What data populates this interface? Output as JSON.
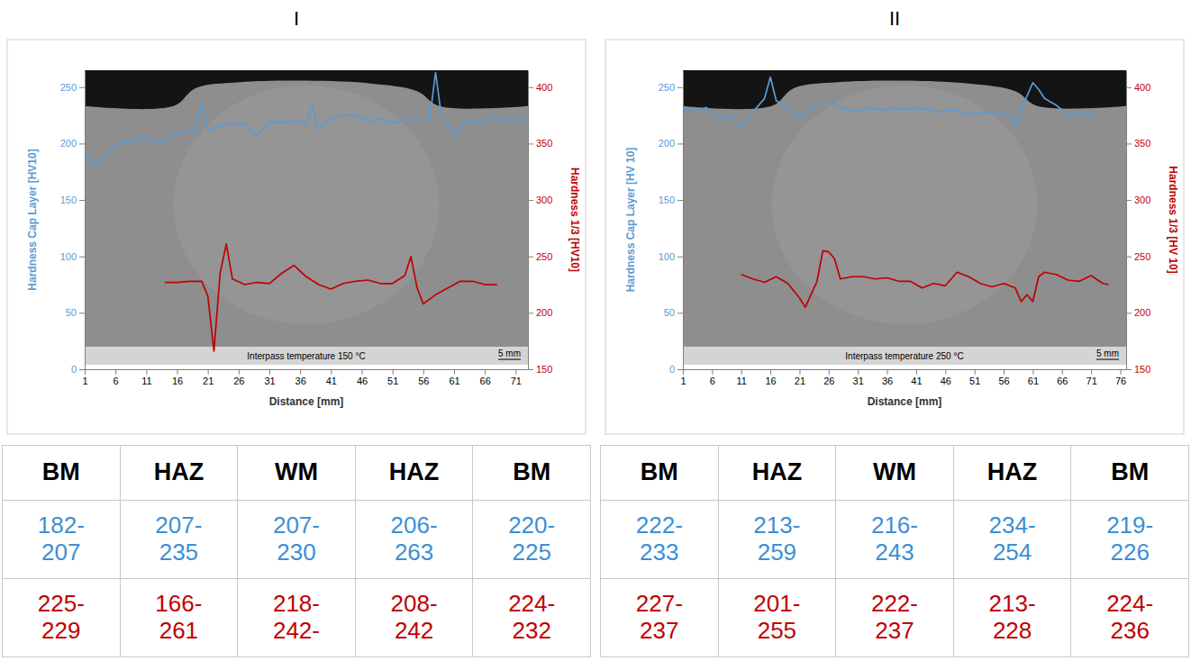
{
  "chart_data": [
    {
      "type": "line",
      "title": "I",
      "x_label": "Distance [mm]",
      "y_label": "Hardness Cap Layer [HV10]",
      "y2_label": "Hardness 1/3 [HV10]",
      "annotations": [
        "Interpass temperature 150 °C",
        "5 mm"
      ],
      "xlim": [
        1,
        73
      ],
      "xticks": [
        1,
        6,
        11,
        16,
        21,
        26,
        31,
        36,
        41,
        46,
        51,
        56,
        61,
        66,
        71
      ],
      "ylim": [
        0,
        265
      ],
      "yticks": [
        0,
        50,
        100,
        150,
        200,
        250
      ],
      "y2lim": [
        150,
        415
      ],
      "y2ticks": [
        150,
        200,
        250,
        300,
        350,
        400
      ],
      "grid": false,
      "series": [
        {
          "color": "#5b9bd5",
          "axis": "y",
          "x": [
            1,
            3,
            5,
            7,
            9,
            11,
            13,
            15,
            17,
            19,
            20,
            21,
            23,
            25,
            27,
            29,
            31,
            33,
            35,
            37,
            38,
            39,
            41,
            43,
            45,
            47,
            49,
            51,
            53,
            55,
            57,
            58,
            59,
            60,
            61,
            63,
            65,
            67,
            69,
            71,
            73
          ],
          "values": [
            190,
            182,
            195,
            200,
            203,
            205,
            200,
            207,
            210,
            212,
            235,
            212,
            215,
            218,
            217,
            207,
            220,
            218,
            220,
            218,
            232,
            212,
            222,
            225,
            225,
            220,
            222,
            218,
            220,
            222,
            220,
            263,
            222,
            218,
            208,
            220,
            218,
            222,
            222,
            220,
            222
          ]
        },
        {
          "color": "#c00000",
          "axis": "y2",
          "x": [
            14,
            16,
            18,
            20,
            21,
            22,
            23,
            24,
            25,
            27,
            29,
            31,
            33,
            35,
            37,
            39,
            41,
            43,
            45,
            47,
            49,
            51,
            53,
            54,
            55,
            56,
            58,
            60,
            62,
            64,
            66,
            68
          ],
          "values": [
            227,
            227,
            228,
            228,
            215,
            166,
            235,
            261,
            230,
            225,
            227,
            226,
            235,
            242,
            232,
            225,
            221,
            226,
            228,
            229,
            226,
            226,
            233,
            250,
            222,
            208,
            216,
            222,
            228,
            228,
            225,
            225
          ]
        }
      ]
    },
    {
      "type": "line",
      "title": "II",
      "x_label": "Distance [mm]",
      "y_label": "Hardness Cap Layer [HV 10]",
      "y2_label": "Hardness 1/3 [HV 10]",
      "annotations": [
        "Interpass temperature 250 °C",
        "5 mm"
      ],
      "xlim": [
        1,
        77
      ],
      "xticks": [
        1,
        6,
        11,
        16,
        21,
        26,
        31,
        36,
        41,
        46,
        51,
        56,
        61,
        66,
        71,
        76
      ],
      "ylim": [
        0,
        265
      ],
      "yticks": [
        0,
        50,
        100,
        150,
        200,
        250
      ],
      "y2lim": [
        150,
        415
      ],
      "y2ticks": [
        150,
        200,
        250,
        300,
        350,
        400
      ],
      "grid": false,
      "series": [
        {
          "color": "#5b9bd5",
          "axis": "y",
          "x": [
            1,
            3,
            5,
            7,
            9,
            11,
            13,
            15,
            16,
            17,
            19,
            21,
            23,
            25,
            27,
            29,
            31,
            33,
            35,
            37,
            39,
            41,
            43,
            45,
            47,
            49,
            51,
            53,
            55,
            57,
            58,
            59,
            61,
            62,
            63,
            65,
            67,
            69,
            71,
            72
          ],
          "values": [
            230,
            228,
            232,
            222,
            225,
            213,
            228,
            240,
            259,
            238,
            232,
            222,
            232,
            236,
            235,
            230,
            228,
            232,
            230,
            232,
            230,
            232,
            230,
            228,
            230,
            228,
            226,
            228,
            227,
            226,
            216,
            230,
            254,
            248,
            240,
            234,
            226,
            226,
            226,
            225
          ]
        },
        {
          "color": "#c00000",
          "axis": "y2",
          "x": [
            11,
            13,
            15,
            17,
            19,
            21,
            22,
            24,
            25,
            26,
            27,
            28,
            30,
            32,
            34,
            36,
            38,
            40,
            42,
            44,
            46,
            48,
            50,
            52,
            54,
            56,
            58,
            59,
            60,
            61,
            62,
            63,
            65,
            67,
            69,
            71,
            73,
            74
          ],
          "values": [
            234,
            230,
            227,
            232,
            226,
            213,
            205,
            228,
            255,
            254,
            248,
            230,
            232,
            232,
            230,
            231,
            228,
            228,
            222,
            226,
            224,
            236,
            232,
            226,
            223,
            226,
            222,
            210,
            216,
            210,
            232,
            236,
            234,
            229,
            228,
            233,
            226,
            225
          ]
        }
      ]
    }
  ],
  "tables": [
    {
      "header": [
        "BM",
        "HAZ",
        "WM",
        "HAZ",
        "BM"
      ],
      "row_colors": [
        "#3d8fd6",
        "#c00000"
      ],
      "rows": [
        [
          "182-207",
          "207-235",
          "207-230",
          "206-263",
          "220-225"
        ],
        [
          "225-229",
          "166-261",
          "218-242-",
          "208-242",
          "224-232"
        ]
      ]
    },
    {
      "header": [
        "BM",
        "HAZ",
        "WM",
        "HAZ",
        "BM"
      ],
      "row_colors": [
        "#3d8fd6",
        "#c00000"
      ],
      "rows": [
        [
          "222-233",
          "213-259",
          "216-243",
          "234-254",
          "219-226"
        ],
        [
          "227-237",
          "201-255",
          "222-237",
          "213-228",
          "224-236"
        ]
      ]
    }
  ]
}
